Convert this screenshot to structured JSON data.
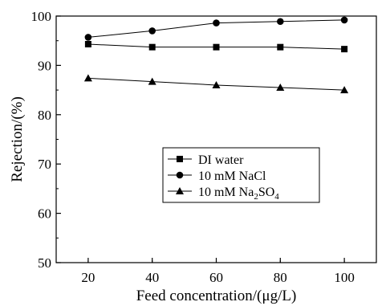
{
  "chart_data": {
    "type": "line",
    "title": "",
    "xlabel": "Feed concentration/(μg/L)",
    "ylabel": "Rejection/(%)",
    "xlim": [
      10,
      110
    ],
    "ylim": [
      50,
      100
    ],
    "x": [
      20,
      40,
      60,
      80,
      100
    ],
    "x_ticks": [
      "20",
      "40",
      "60",
      "80",
      "100"
    ],
    "y_ticks": [
      "50",
      "60",
      "70",
      "80",
      "90",
      "100"
    ],
    "grid": false,
    "legend_position": "center-right",
    "series": [
      {
        "name": "DI water",
        "marker": "square",
        "values": [
          94.3,
          93.7,
          93.7,
          93.7,
          93.3
        ]
      },
      {
        "name": "10 mM NaCl",
        "marker": "circle",
        "values": [
          95.7,
          97.0,
          98.6,
          98.9,
          99.2
        ]
      },
      {
        "name": "10 mM Na2SO4",
        "marker": "triangle",
        "values": [
          87.4,
          86.7,
          86.0,
          85.5,
          85.0
        ]
      }
    ],
    "legend_label_parts": [
      [
        "DI water"
      ],
      [
        "10 mM NaCl"
      ],
      [
        "10 mM Na",
        "2",
        "SO",
        "4"
      ]
    ]
  }
}
